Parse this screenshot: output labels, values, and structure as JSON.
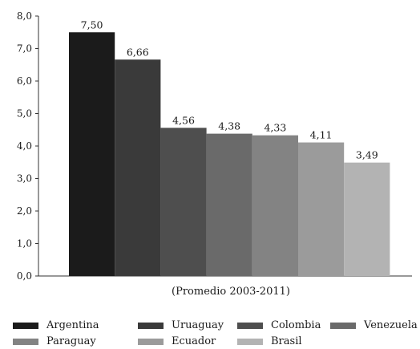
{
  "chart_data": {
    "type": "bar",
    "categories": [
      "Argentina",
      "Uruaguay",
      "Colombia",
      "Venezuela",
      "Paraguay",
      "Ecuador",
      "Brasil"
    ],
    "values": [
      7.5,
      6.66,
      4.56,
      4.38,
      4.33,
      4.11,
      3.49
    ],
    "value_labels": [
      "7,50",
      "6,66",
      "4,56",
      "4,38",
      "4,33",
      "4,11",
      "3,49"
    ],
    "colors": [
      "#1b1b1b",
      "#3a3a3a",
      "#4e4e4e",
      "#6a6a6a",
      "#838383",
      "#9b9b9b",
      "#b3b3b3"
    ],
    "xlabel": "(Promedio 2003-2011)",
    "ylabel": "",
    "ylim": [
      0,
      8
    ],
    "yticks": [
      0,
      1,
      2,
      3,
      4,
      5,
      6,
      7,
      8
    ],
    "ytick_labels": [
      "0,0",
      "1,0",
      "2,0",
      "3,0",
      "4,0",
      "5,0",
      "6,0",
      "7,0",
      "8,0"
    ],
    "grid": false,
    "legend_position": "bottom"
  },
  "legend": {
    "items": [
      {
        "label": "Argentina",
        "color": "#1b1b1b"
      },
      {
        "label": "Uruaguay",
        "color": "#3a3a3a"
      },
      {
        "label": "Colombia",
        "color": "#4e4e4e"
      },
      {
        "label": "Venezuela",
        "color": "#6a6a6a"
      },
      {
        "label": "Paraguay",
        "color": "#838383"
      },
      {
        "label": "Ecuador",
        "color": "#9b9b9b"
      },
      {
        "label": "Brasil",
        "color": "#b3b3b3"
      }
    ]
  }
}
